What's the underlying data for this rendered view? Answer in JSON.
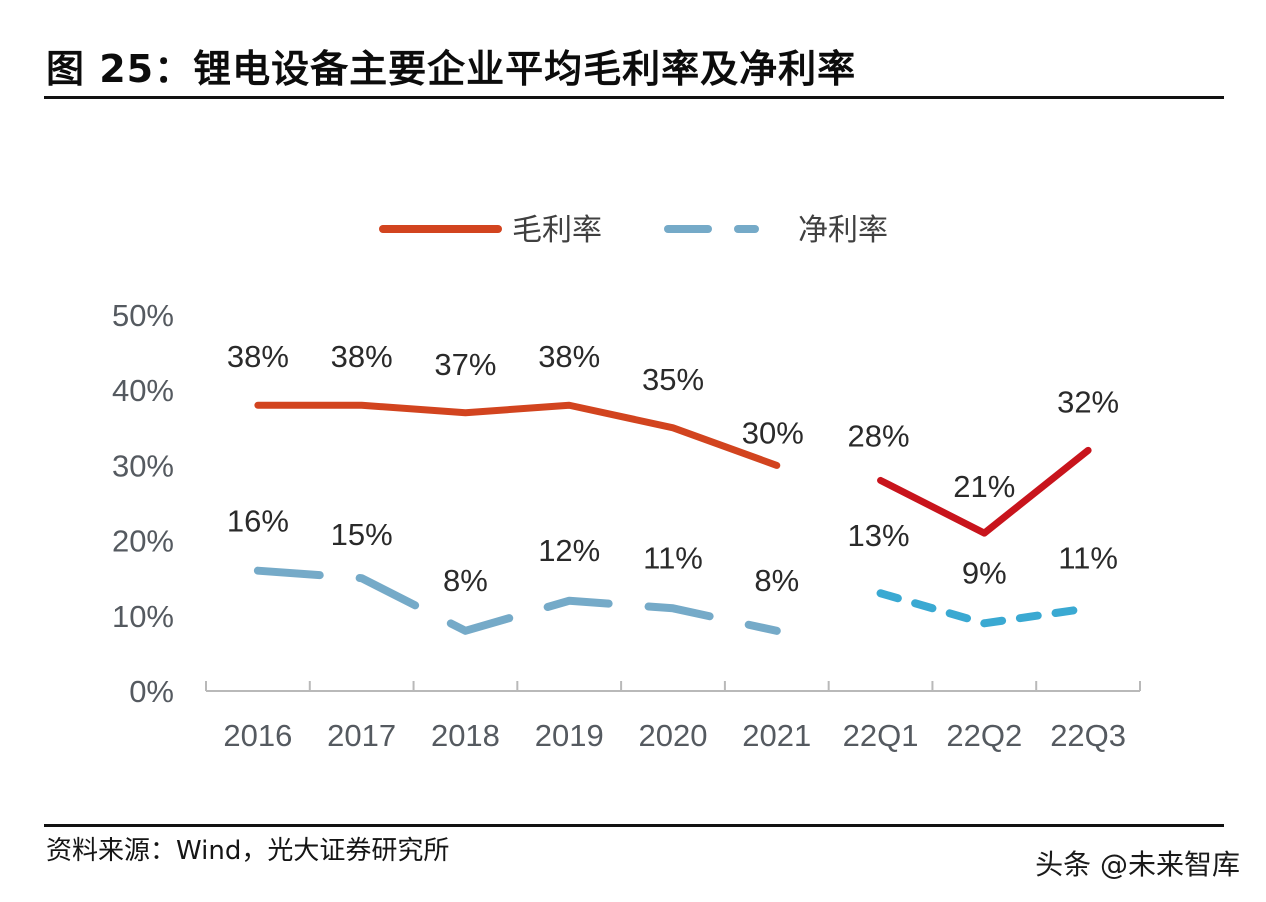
{
  "header": {
    "title": "图 25：锂电设备主要企业平均毛利率及净利率"
  },
  "footer": {
    "source": "资料来源：Wind，光大证券研究所",
    "watermark": "头条 @未来智库"
  },
  "colors": {
    "gross_annual": "#d2441f",
    "gross_quarterly": "#c8141c",
    "net_annual": "#75aac8",
    "net_quarterly": "#3aa9d2",
    "axis": "#b9b9b9"
  },
  "chart_data": {
    "type": "line",
    "title": "锂电设备主要企业平均毛利率及净利率",
    "xlabel": "",
    "ylabel": "",
    "categories": [
      "2016",
      "2017",
      "2018",
      "2019",
      "2020",
      "2021",
      "22Q1",
      "22Q2",
      "22Q3"
    ],
    "ylim": [
      0,
      50
    ],
    "yticks": [
      "0%",
      "10%",
      "20%",
      "30%",
      "40%",
      "50%"
    ],
    "ytick_values": [
      0,
      10,
      20,
      30,
      40,
      50
    ],
    "grid": false,
    "legend_position": "top-center",
    "series": [
      {
        "name": "毛利率",
        "style": "solid",
        "values": [
          38,
          38,
          37,
          38,
          35,
          30,
          28,
          21,
          32
        ],
        "labels": [
          "38%",
          "38%",
          "37%",
          "38%",
          "35%",
          "30%",
          "28%",
          "21%",
          "32%"
        ],
        "segments": [
          [
            0,
            5
          ],
          [
            6,
            8
          ]
        ]
      },
      {
        "name": "净利率",
        "style": "dashed",
        "values": [
          16,
          15,
          8,
          12,
          11,
          8,
          13,
          9,
          11
        ],
        "labels": [
          "16%",
          "15%",
          "8%",
          "12%",
          "11%",
          "8%",
          "13%",
          "9%",
          "11%"
        ],
        "segments": [
          [
            0,
            5
          ],
          [
            6,
            8
          ]
        ]
      }
    ]
  }
}
